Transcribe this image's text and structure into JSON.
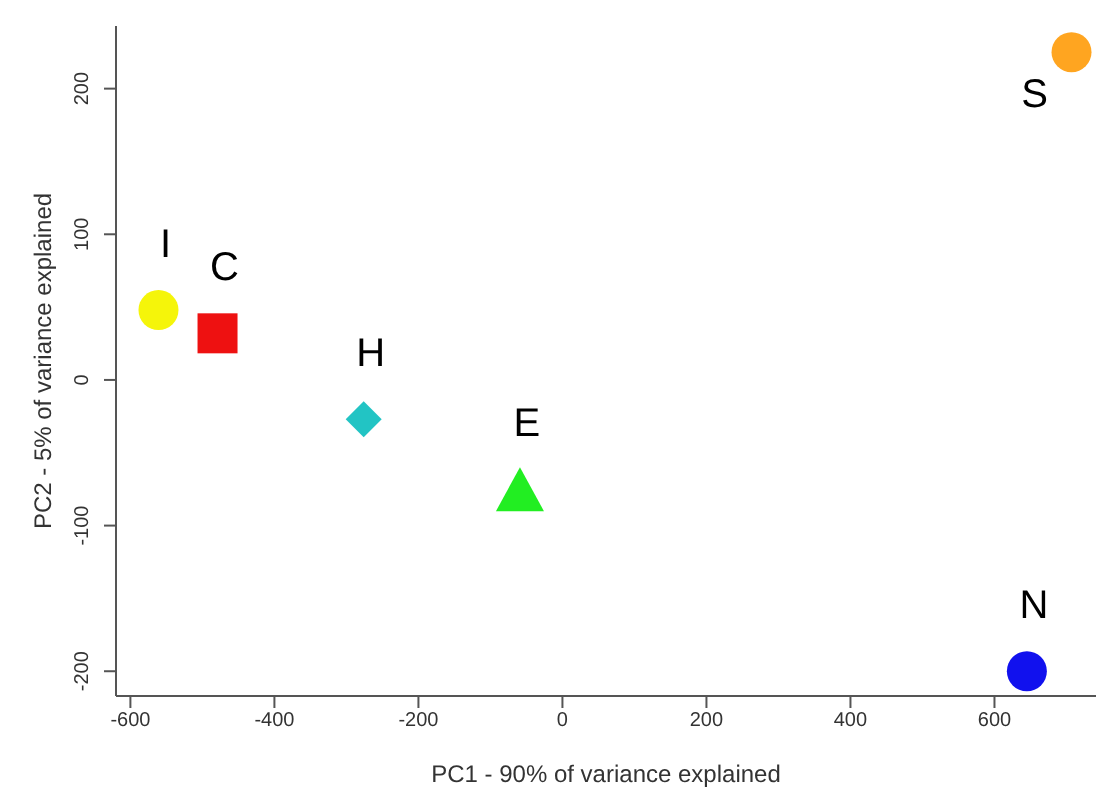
{
  "chart_data": {
    "type": "scatter",
    "xlabel": "PC1 - 90% of variance explained",
    "ylabel": "PC2 - 5% of variance explained",
    "xlim": [
      -620,
      741
    ],
    "ylim": [
      -217,
      243
    ],
    "xticks": [
      -600,
      -400,
      -200,
      0,
      200,
      400,
      600
    ],
    "yticks": [
      -200,
      -100,
      0,
      100,
      200
    ],
    "grid": false,
    "legend": false,
    "series": [
      {
        "name": "I",
        "color": "#f5f50a",
        "marker": "circle",
        "x": [
          -561
        ],
        "values": [
          48
        ]
      },
      {
        "name": "C",
        "color": "#ee1111",
        "marker": "square",
        "x": [
          -479
        ],
        "values": [
          32
        ]
      },
      {
        "name": "H",
        "color": "#22c4c4",
        "marker": "diamond",
        "x": [
          -276
        ],
        "values": [
          -27
        ]
      },
      {
        "name": "E",
        "color": "#22ee22",
        "marker": "triangle",
        "x": [
          -59
        ],
        "values": [
          -75
        ]
      },
      {
        "name": "N",
        "color": "#1111ee",
        "marker": "circle",
        "x": [
          645
        ],
        "values": [
          -200
        ]
      },
      {
        "name": "S",
        "color": "#ffa520",
        "marker": "circle",
        "x": [
          707
        ],
        "values": [
          225
        ]
      }
    ]
  }
}
